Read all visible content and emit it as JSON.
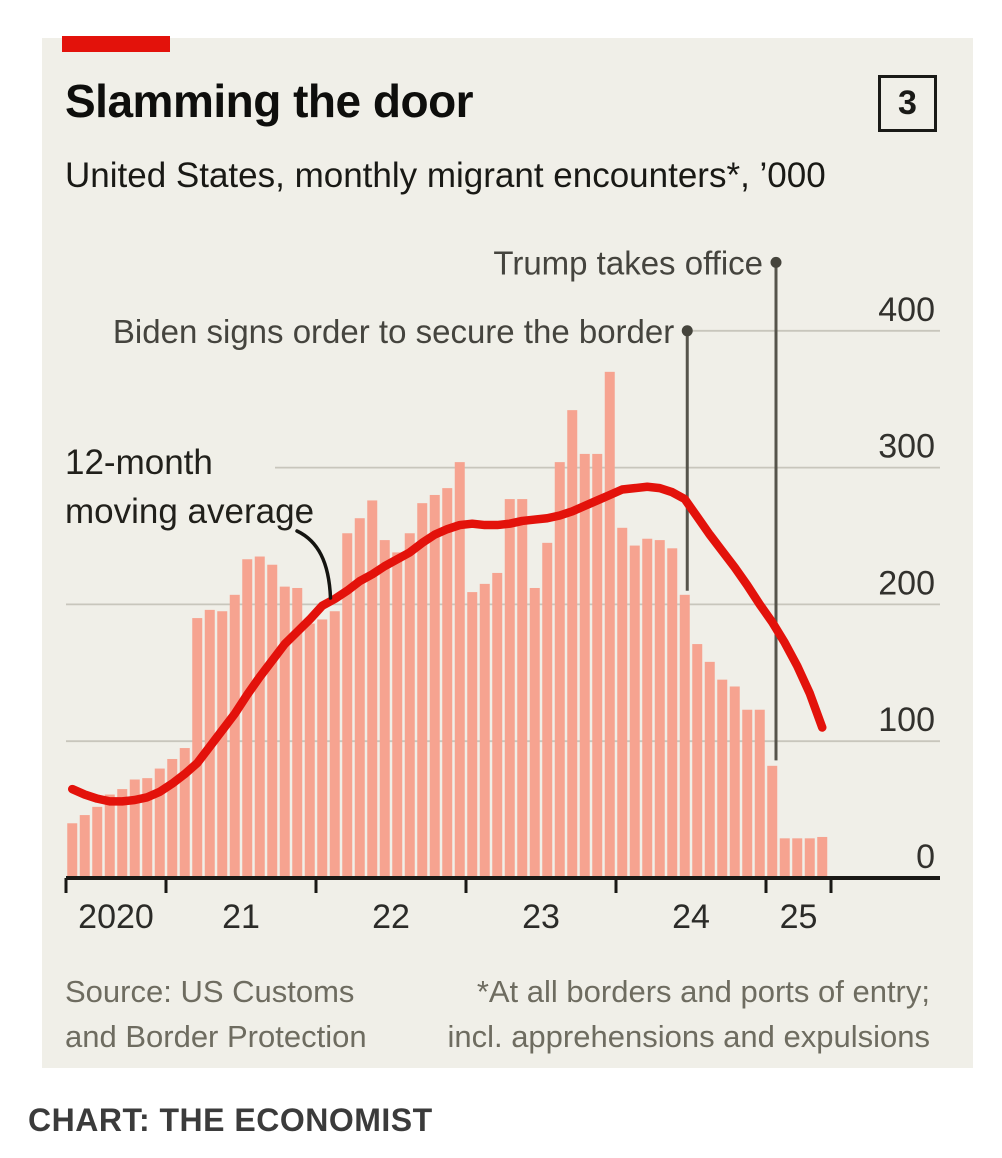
{
  "header": {
    "title": "Slamming the door",
    "subtitle": "United States, monthly migrant encounters*, ’000",
    "index_badge": "3"
  },
  "footer": {
    "source_line1": "Source: US Customs",
    "source_line2": "and Border Protection",
    "note_line1": "*At all borders and ports of entry;",
    "note_line2": "incl. apprehensions and expulsions"
  },
  "credit": "CHART: THE ECONOMIST",
  "colors": {
    "card_background": "#f0efe8",
    "brand_red": "#e3120b",
    "bar_fill": "#f6a390",
    "ma_line": "#e3120b",
    "gridline": "#c8c6bc",
    "axis": "#1a1916",
    "annotation_line": "#56544b",
    "annotation_dot": "#45443c",
    "annotation_text": "#45443e"
  },
  "chart_data": {
    "type": "bar",
    "title": "Slamming the door",
    "subtitle": "United States, monthly migrant encounters*, ’000",
    "unit": "thousands of encounters per month",
    "ylim": [
      0,
      430
    ],
    "yticks": [
      0,
      100,
      200,
      300,
      400
    ],
    "grid": true,
    "ytick_label_side": "right",
    "xtick_labels": [
      "2020",
      "21",
      "22",
      "23",
      "24",
      "25"
    ],
    "months": [
      "2020-05",
      "2020-06",
      "2020-07",
      "2020-08",
      "2020-09",
      "2020-10",
      "2020-11",
      "2020-12",
      "2021-01",
      "2021-02",
      "2021-03",
      "2021-04",
      "2021-05",
      "2021-06",
      "2021-07",
      "2021-08",
      "2021-09",
      "2021-10",
      "2021-11",
      "2021-12",
      "2022-01",
      "2022-02",
      "2022-03",
      "2022-04",
      "2022-05",
      "2022-06",
      "2022-07",
      "2022-08",
      "2022-09",
      "2022-10",
      "2022-11",
      "2022-12",
      "2023-01",
      "2023-02",
      "2023-03",
      "2023-04",
      "2023-05",
      "2023-06",
      "2023-07",
      "2023-08",
      "2023-09",
      "2023-10",
      "2023-11",
      "2023-12",
      "2024-01",
      "2024-02",
      "2024-03",
      "2024-04",
      "2024-05",
      "2024-06",
      "2024-07",
      "2024-08",
      "2024-09",
      "2024-10",
      "2024-11",
      "2024-12",
      "2025-01",
      "2025-02",
      "2025-03",
      "2025-04",
      "2025-05"
    ],
    "series": [
      {
        "name": "Monthly migrant encounters, '000",
        "render": "bar",
        "values": [
          40,
          46,
          52,
          61,
          65,
          72,
          73,
          80,
          87,
          95,
          190,
          196,
          195,
          207,
          233,
          235,
          229,
          213,
          212,
          186,
          189,
          195,
          252,
          263,
          276,
          247,
          238,
          252,
          274,
          280,
          285,
          304,
          209,
          215,
          223,
          277,
          277,
          212,
          245,
          304,
          342,
          310,
          310,
          370,
          256,
          243,
          248,
          247,
          241,
          207,
          171,
          158,
          145,
          140,
          123,
          123,
          82,
          29,
          29,
          29,
          30
        ]
      },
      {
        "name": "12-month moving average",
        "render": "line",
        "values": [
          65,
          61,
          58,
          56,
          56,
          57,
          59,
          63,
          69,
          76,
          84,
          96,
          108,
          120,
          134,
          147,
          159,
          171,
          180,
          189,
          199,
          204,
          210,
          217,
          222,
          228,
          233,
          238,
          245,
          251,
          255,
          258,
          259,
          258,
          258,
          259,
          261,
          262,
          263,
          265,
          268,
          272,
          276,
          280,
          284,
          285,
          286,
          285,
          282,
          277,
          264,
          251,
          239,
          227,
          214,
          200,
          187,
          172,
          155,
          135,
          110
        ]
      }
    ],
    "line_label": {
      "line1": "12-month",
      "line2": "moving average"
    },
    "annotations": [
      {
        "label": "Trump takes office",
        "month": "2025-01",
        "month_fraction": 56.3,
        "dot_value": 450,
        "line_bottom_value": 86
      },
      {
        "label": "Biden signs order to secure the border",
        "month": "2024-06",
        "month_fraction": 49.2,
        "dot_value": 400,
        "line_bottom_value": 210
      }
    ]
  }
}
